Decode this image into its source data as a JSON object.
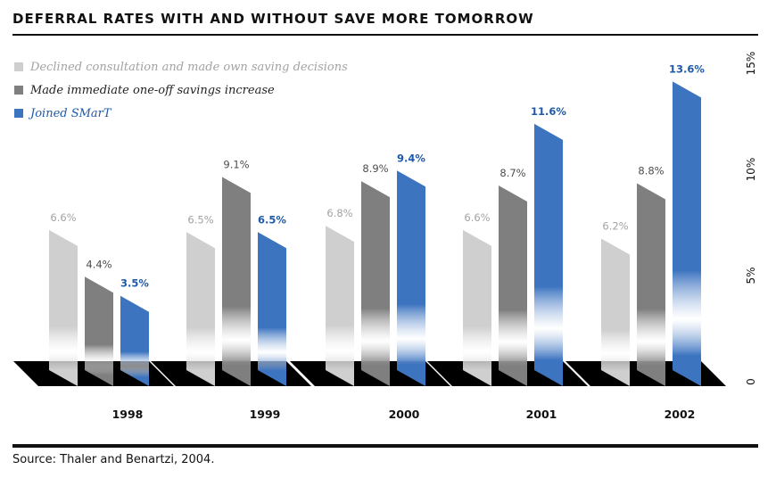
{
  "page": {
    "title": "DEFERRAL RATES WITH AND WITHOUT SAVE MORE TOMORROW",
    "source": "Source: Thaler and Benartzi, 2004."
  },
  "colors": {
    "declined": "#cfcfcf",
    "declined_text": "#a3a3a3",
    "immediate": "#7f7f7f",
    "immediate_text": "#4d4d4d",
    "smart": "#3d74c0",
    "smart_text": "#1f5aa8",
    "floor": "#000000"
  },
  "chart_data": {
    "type": "bar",
    "title": "DEFERRAL RATES WITH AND WITHOUT SAVE MORE TOMORROW",
    "categories": [
      "1998",
      "1999",
      "2000",
      "2001",
      "2002"
    ],
    "series": [
      {
        "name": "Declined consultation and made own saving decisions",
        "values": [
          6.6,
          6.5,
          6.8,
          6.6,
          6.2
        ],
        "labels": [
          "6.6%",
          "6.5%",
          "6.8%",
          "6.6%",
          "6.2%"
        ]
      },
      {
        "name": "Made immediate one-off savings increase",
        "values": [
          4.4,
          9.1,
          8.9,
          8.7,
          8.8
        ],
        "labels": [
          "4.4%",
          "9.1%",
          "8.9%",
          "8.7%",
          "8.8%"
        ]
      },
      {
        "name": "Joined SMarT",
        "values": [
          3.5,
          6.5,
          9.4,
          11.6,
          13.6
        ],
        "labels": [
          "3.5%",
          "6.5%",
          "9.4%",
          "11.6%",
          "13.6%"
        ]
      }
    ],
    "ylim": [
      0,
      15
    ],
    "yticks": [
      0,
      5,
      10,
      15
    ],
    "ytick_labels": [
      "0",
      "5%",
      "10%",
      "15%"
    ],
    "xlabel": "",
    "ylabel": "",
    "legend_position": "top-left",
    "grid": false
  }
}
